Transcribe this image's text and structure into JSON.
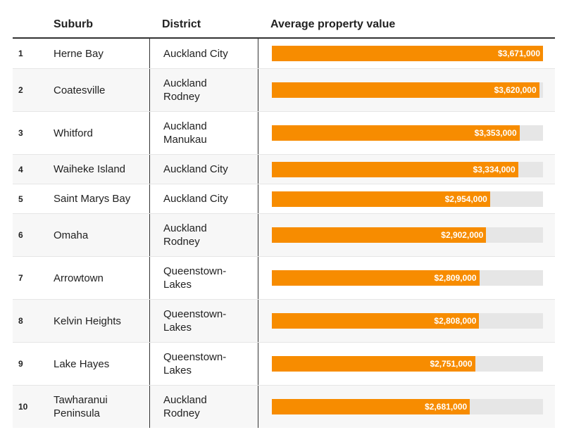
{
  "chart_data": {
    "type": "bar",
    "orientation": "horizontal",
    "columns": [
      "Suburb",
      "District",
      "Average property value"
    ],
    "xlim": [
      0,
      3671000
    ],
    "bar_color": "#f78c00",
    "track_color": "#e6e6e6",
    "rows": [
      {
        "rank": "1",
        "suburb": [
          "Herne Bay"
        ],
        "district": [
          "Auckland City"
        ],
        "value": 3671000,
        "label": "$3,671,000"
      },
      {
        "rank": "2",
        "suburb": [
          "Coatesville"
        ],
        "district": [
          "Auckland",
          "Rodney"
        ],
        "value": 3620000,
        "label": "$3,620,000"
      },
      {
        "rank": "3",
        "suburb": [
          "Whitford"
        ],
        "district": [
          "Auckland",
          "Manukau"
        ],
        "value": 3353000,
        "label": "$3,353,000"
      },
      {
        "rank": "4",
        "suburb": [
          "Waiheke Island"
        ],
        "district": [
          "Auckland City"
        ],
        "value": 3334000,
        "label": "$3,334,000"
      },
      {
        "rank": "5",
        "suburb": [
          "Saint Marys Bay"
        ],
        "district": [
          "Auckland City"
        ],
        "value": 2954000,
        "label": "$2,954,000"
      },
      {
        "rank": "6",
        "suburb": [
          "Omaha"
        ],
        "district": [
          "Auckland",
          "Rodney"
        ],
        "value": 2902000,
        "label": "$2,902,000"
      },
      {
        "rank": "7",
        "suburb": [
          "Arrowtown"
        ],
        "district": [
          "Queenstown-",
          "Lakes"
        ],
        "value": 2809000,
        "label": "$2,809,000"
      },
      {
        "rank": "8",
        "suburb": [
          "Kelvin Heights"
        ],
        "district": [
          "Queenstown-",
          "Lakes"
        ],
        "value": 2808000,
        "label": "$2,808,000"
      },
      {
        "rank": "9",
        "suburb": [
          "Lake Hayes"
        ],
        "district": [
          "Queenstown-",
          "Lakes"
        ],
        "value": 2751000,
        "label": "$2,751,000"
      },
      {
        "rank": "10",
        "suburb": [
          "Tawharanui",
          "Peninsula"
        ],
        "district": [
          "Auckland",
          "Rodney"
        ],
        "value": 2681000,
        "label": "$2,681,000"
      }
    ]
  }
}
